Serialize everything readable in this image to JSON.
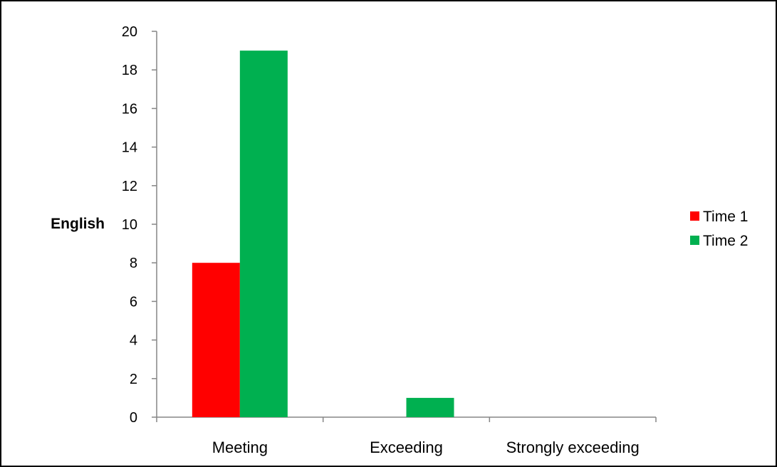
{
  "chart_data": {
    "type": "bar",
    "title": "",
    "xlabel": "",
    "ylabel": "English",
    "categories": [
      "Meeting",
      "Exceeding",
      "Strongly exceeding"
    ],
    "series": [
      {
        "name": "Time 1",
        "color": "#ff0000",
        "values": [
          8,
          0,
          0
        ]
      },
      {
        "name": "Time 2",
        "color": "#00b050",
        "values": [
          19,
          1,
          0
        ]
      }
    ],
    "ylim": [
      0,
      20
    ],
    "yticks": [
      "0",
      "2",
      "4",
      "6",
      "8",
      "10",
      "12",
      "14",
      "16",
      "18",
      "20"
    ],
    "grid": false,
    "legend_position": "right"
  }
}
